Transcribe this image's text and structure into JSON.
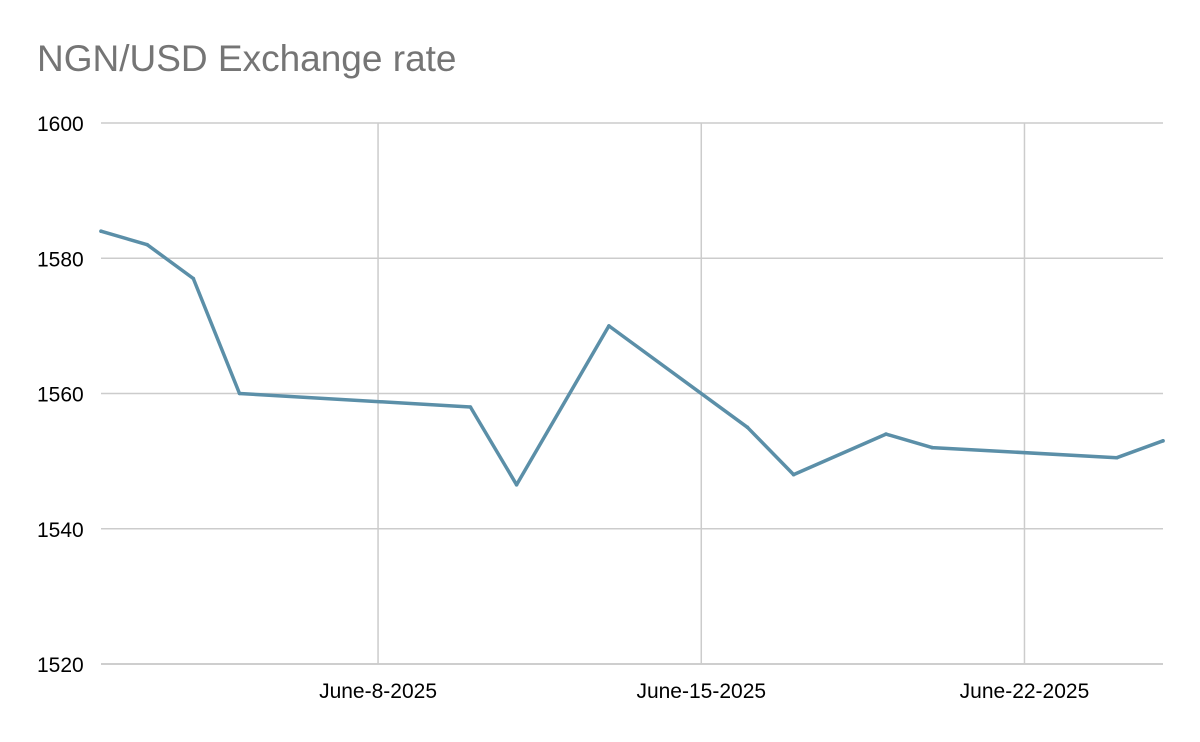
{
  "chart_data": {
    "type": "line",
    "title": "NGN/USD Exchange rate",
    "xlabel": "",
    "ylabel": "",
    "ylim": [
      1520,
      1600
    ],
    "yticks": [
      1520,
      1540,
      1560,
      1580,
      1600
    ],
    "xlim": [
      "2025-06-02",
      "2025-06-25"
    ],
    "xticks": [
      {
        "date": "2025-06-08",
        "label": "June-8-2025"
      },
      {
        "date": "2025-06-15",
        "label": "June-15-2025"
      },
      {
        "date": "2025-06-22",
        "label": "June-22-2025"
      }
    ],
    "grid": true,
    "legend": "none",
    "line_color": "#5b8fa8",
    "series": [
      {
        "x": [
          "2025-06-02",
          "2025-06-03",
          "2025-06-04",
          "2025-06-05",
          "2025-06-10",
          "2025-06-11",
          "2025-06-13",
          "2025-06-16",
          "2025-06-17",
          "2025-06-19",
          "2025-06-20",
          "2025-06-24",
          "2025-06-25"
        ],
        "values": [
          1584,
          1582,
          1577,
          1560,
          1558,
          1546.5,
          1570,
          1555,
          1548,
          1554,
          1552,
          1550.5,
          1553
        ]
      }
    ]
  }
}
